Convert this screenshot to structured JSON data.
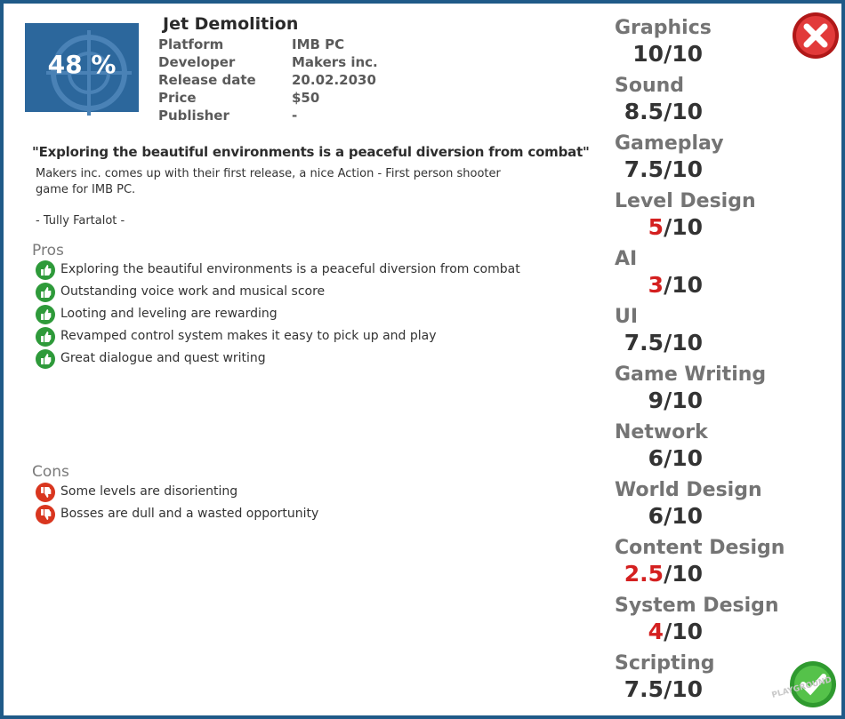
{
  "header": {
    "rating": "48 %",
    "title": "Jet Demolition",
    "info": [
      {
        "label": "Platform",
        "value": "IMB PC"
      },
      {
        "label": "Developer",
        "value": "Makers inc."
      },
      {
        "label": "Release date",
        "value": "20.02.2030"
      },
      {
        "label": "Price",
        "value": "$50"
      },
      {
        "label": "Publisher",
        "value": "-"
      }
    ]
  },
  "review": {
    "quote": "\"Exploring the beautiful environments is a peaceful diversion from combat\"",
    "body": [
      "Makers inc. comes up with their first release, a nice Action - First person shooter",
      "game for IMB PC."
    ],
    "author": "- Tully Fartalot -"
  },
  "pros": {
    "title": "Pros",
    "items": [
      "Exploring the beautiful environments is a peaceful diversion from combat",
      "Outstanding voice work and musical score",
      "Looting and leveling are rewarding",
      "Revamped control system makes it easy to pick up and play",
      "Great dialogue and quest writing"
    ]
  },
  "cons": {
    "title": "Cons",
    "items": [
      "Some levels are disorienting",
      "Bosses are dull and a wasted opportunity"
    ]
  },
  "categories": [
    {
      "name": "Graphics",
      "score": 10,
      "suffix": "/10",
      "color": "#333333"
    },
    {
      "name": "Sound",
      "score": 8.5,
      "suffix": "/10",
      "color": "#333333"
    },
    {
      "name": "Gameplay",
      "score": 7.5,
      "suffix": "/10",
      "color": "#333333"
    },
    {
      "name": "Level Design",
      "score": 5,
      "suffix": "/10",
      "color": "#d42020"
    },
    {
      "name": "AI",
      "score": 3,
      "suffix": "/10",
      "color": "#d42020"
    },
    {
      "name": "UI",
      "score": 7.5,
      "suffix": "/10",
      "color": "#333333"
    },
    {
      "name": "Game Writing",
      "score": 9,
      "suffix": "/10",
      "color": "#333333"
    },
    {
      "name": "Network",
      "score": 6,
      "suffix": "/10",
      "color": "#333333"
    },
    {
      "name": "World Design",
      "score": 6,
      "suffix": "/10",
      "color": "#333333"
    },
    {
      "name": "Content Design",
      "score": 2.5,
      "suffix": "/10",
      "color": "#d42020"
    },
    {
      "name": "System Design",
      "score": 4,
      "suffix": "/10",
      "color": "#d42020"
    },
    {
      "name": "Scripting",
      "score": 7.5,
      "suffix": "/10",
      "color": "#333333"
    }
  ],
  "logo": "PLAYGROUND"
}
